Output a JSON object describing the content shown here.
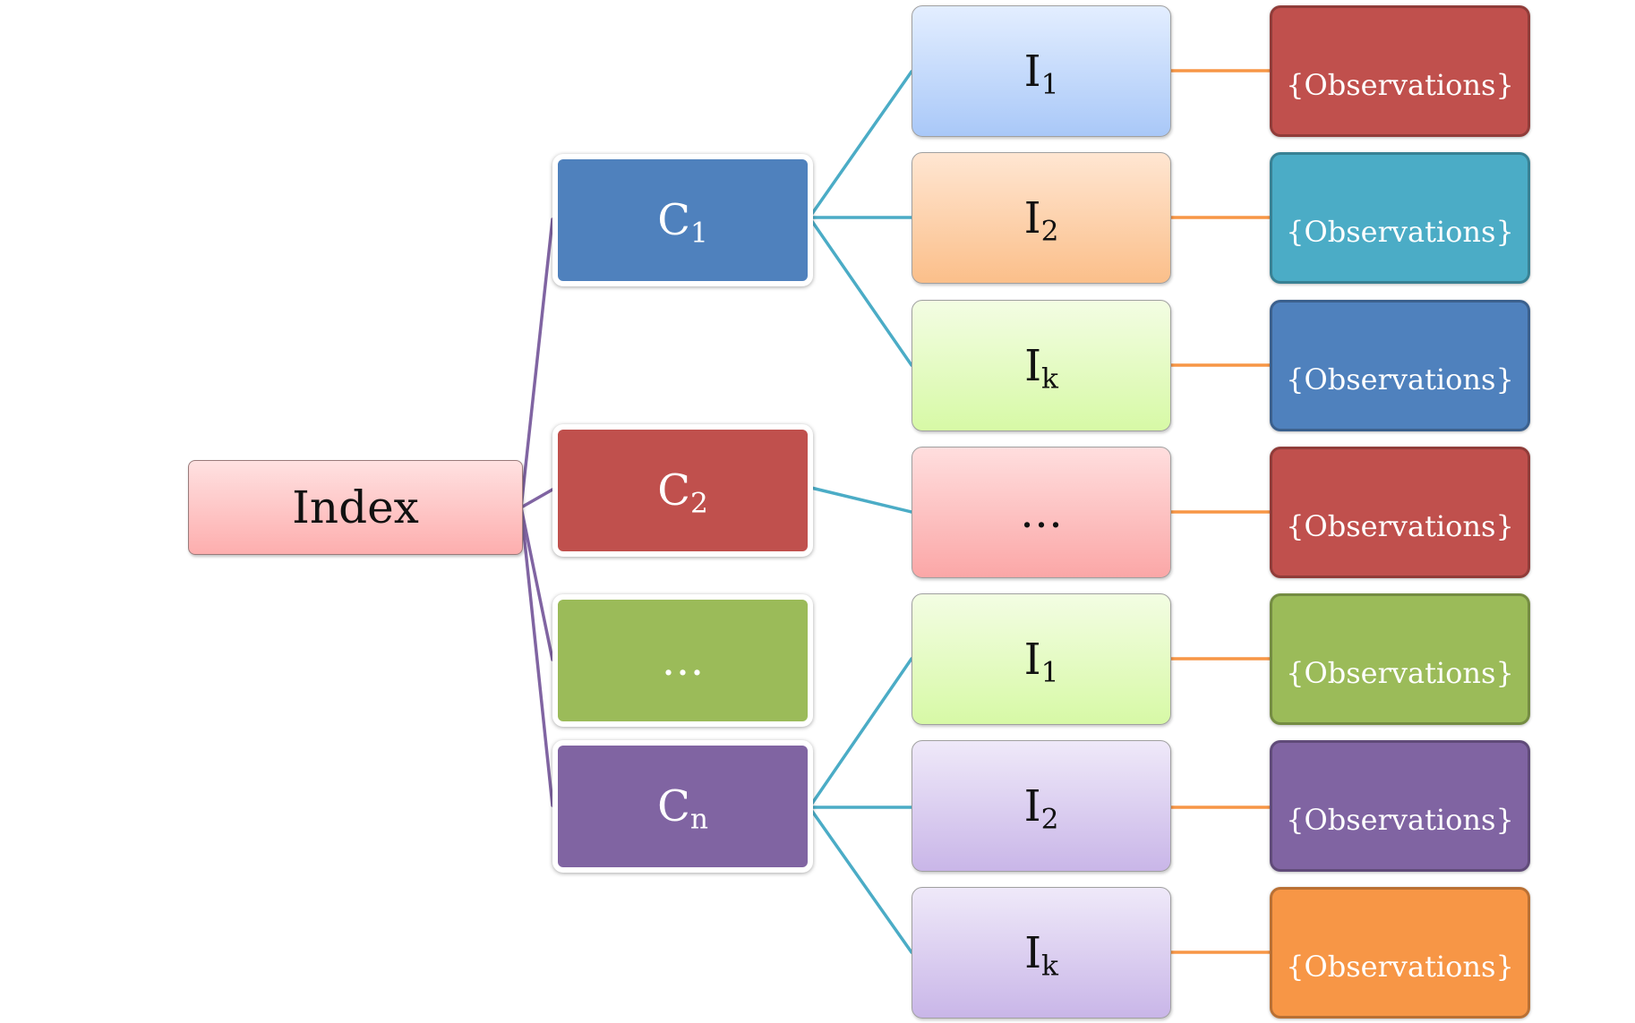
{
  "root": {
    "label": "Index"
  },
  "categories": [
    {
      "base": "C",
      "sub": "1",
      "color": "#4f81bd"
    },
    {
      "base": "C",
      "sub": "2",
      "color": "#c0504d"
    },
    {
      "base": "…",
      "sub": "",
      "color": "#9bbb59"
    },
    {
      "base": "C",
      "sub": "n",
      "color": "#8064a2"
    }
  ],
  "items": [
    {
      "base": "I",
      "sub": "1",
      "gradient": [
        "#e3eeff",
        "#a9c8f8"
      ]
    },
    {
      "base": "I",
      "sub": "2",
      "gradient": [
        "#ffe6d2",
        "#fbbf8a"
      ]
    },
    {
      "base": "I",
      "sub": "k",
      "gradient": [
        "#f3fde3",
        "#d7f9a6"
      ]
    },
    {
      "base": "…",
      "sub": "",
      "gradient": [
        "#ffdede",
        "#fba7a7"
      ]
    },
    {
      "base": "I",
      "sub": "1",
      "gradient": [
        "#f3fde3",
        "#d7f9a6"
      ]
    },
    {
      "base": "I",
      "sub": "2",
      "gradient": [
        "#efe9f9",
        "#c9b6e8"
      ]
    },
    {
      "base": "I",
      "sub": "k",
      "gradient": [
        "#efe9f9",
        "#c9b6e8"
      ]
    }
  ],
  "observations": [
    {
      "label": "{Observations}",
      "color": "#c0504d"
    },
    {
      "label": "{Observations}",
      "color": "#4bacc6"
    },
    {
      "label": "{Observations}",
      "color": "#4f81bd"
    },
    {
      "label": "{Observations}",
      "color": "#c0504d"
    },
    {
      "label": "{Observations}",
      "color": "#9bbb59"
    },
    {
      "label": "{Observations}",
      "color": "#8064a2"
    },
    {
      "label": "{Observations}",
      "color": "#f79646"
    }
  ],
  "connector_colors": {
    "root_to_category": "#8064a2",
    "category_to_item": "#4bacc6",
    "item_to_observation": "#f79646"
  }
}
